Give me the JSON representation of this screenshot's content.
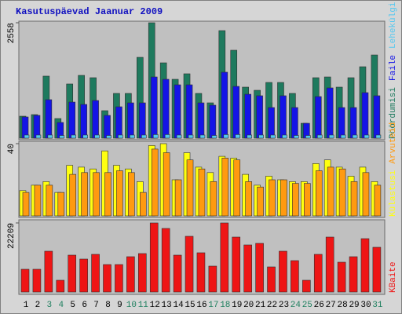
{
  "title": "Kasutuspäevad Jaanuar 2009",
  "chart_data": [
    {
      "type": "bar",
      "ylim": [
        0,
        2558
      ],
      "yticks": [
        2558
      ],
      "series": [
        {
          "name": "Pöördumisi",
          "color": "#1e7a5e",
          "values": [
            487,
            522,
            1375,
            435,
            1201,
            1392,
            1340,
            609,
            992,
            992,
            1792,
            2558,
            1670,
            1305,
            1427,
            992,
            783,
            2384,
            1949,
            1131,
            1061,
            1235,
            1235,
            992,
            330,
            1340,
            1357,
            1131,
            1340,
            1583,
            1844
          ]
        },
        {
          "name": "Faile",
          "color": "#1414e6",
          "values": [
            470,
            505,
            853,
            348,
            800,
            748,
            835,
            505,
            696,
            783,
            783,
            1357,
            1305,
            1183,
            1183,
            783,
            731,
            1462,
            1148,
            974,
            940,
            679,
            940,
            679,
            330,
            922,
            1114,
            679,
            679,
            1009,
            940
          ]
        },
        {
          "name": "Lehekülgi",
          "color": "#55c8f0",
          "values": [
            70,
            70,
            70,
            60,
            70,
            70,
            70,
            60,
            70,
            70,
            70,
            80,
            80,
            70,
            70,
            70,
            60,
            80,
            80,
            70,
            70,
            70,
            70,
            60,
            60,
            70,
            70,
            70,
            70,
            70,
            70
          ]
        }
      ]
    },
    {
      "type": "bar",
      "ylim": [
        0,
        40
      ],
      "yticks": [
        40
      ],
      "series": [
        {
          "name": "Külastusi",
          "color": "#ffff10",
          "values": [
            14,
            17,
            19,
            13,
            28,
            27,
            26,
            36,
            28,
            26,
            19,
            39,
            40,
            20,
            35,
            27,
            24,
            33,
            32,
            23,
            17,
            22,
            20,
            19,
            19,
            29,
            31,
            27,
            22,
            27,
            19
          ]
        },
        {
          "name": "Arvuteid",
          "color": "#ff9a10",
          "values": [
            13,
            17,
            17,
            13,
            23,
            24,
            24,
            24,
            25,
            24,
            13,
            37,
            35,
            20,
            31,
            26,
            19,
            32,
            31,
            19,
            16,
            20,
            20,
            18,
            18,
            25,
            27,
            26,
            19,
            24,
            17
          ]
        }
      ]
    },
    {
      "type": "bar",
      "ylim": [
        0,
        22209
      ],
      "yticks": [
        22209
      ],
      "categories": [
        "1",
        "2",
        "3",
        "4",
        "5",
        "6",
        "7",
        "8",
        "9",
        "10",
        "11",
        "12",
        "13",
        "14",
        "15",
        "16",
        "17",
        "18",
        "19",
        "20",
        "21",
        "22",
        "23",
        "24",
        "25",
        "26",
        "27",
        "28",
        "29",
        "30",
        "31"
      ],
      "category_colors": [
        "#000000",
        "#000000",
        "#208060",
        "#208060",
        "#000000",
        "#000000",
        "#000000",
        "#000000",
        "#000000",
        "#208060",
        "#208060",
        "#000000",
        "#000000",
        "#000000",
        "#000000",
        "#000000",
        "#208060",
        "#208060",
        "#000000",
        "#000000",
        "#000000",
        "#000000",
        "#000000",
        "#208060",
        "#208060",
        "#000000",
        "#000000",
        "#000000",
        "#000000",
        "#000000",
        "#208060"
      ],
      "series": [
        {
          "name": "KBaite",
          "color": "#ee1515",
          "values": [
            7319,
            7319,
            13124,
            3786,
            11862,
            10600,
            12114,
            8833,
            8833,
            11357,
            12366,
            22209,
            20442,
            11862,
            17918,
            12619,
            8328,
            22209,
            17666,
            15142,
            15647,
            8076,
            13124,
            10095,
            3786,
            12114,
            17666,
            9590,
            11357,
            17161,
            14385
          ]
        }
      ]
    }
  ]
}
